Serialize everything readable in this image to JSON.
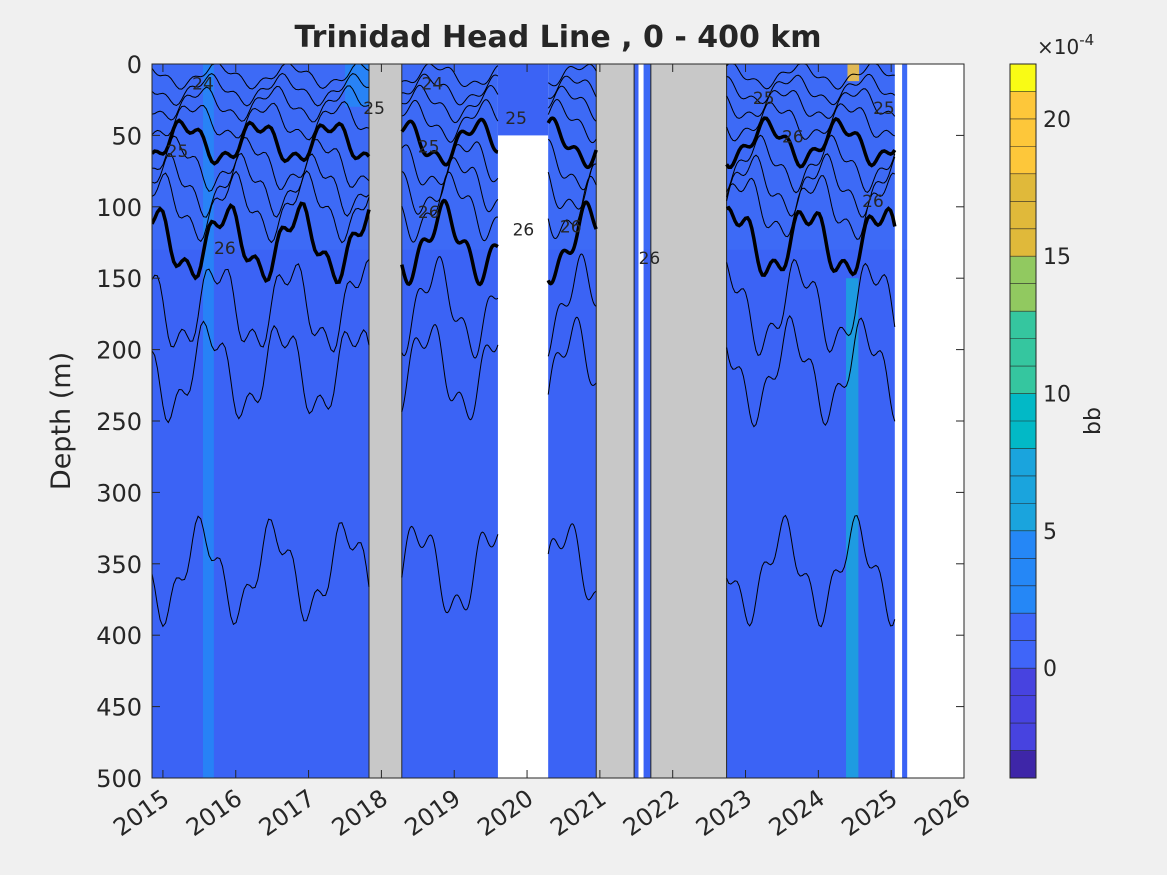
{
  "chart_data": {
    "type": "heatmap",
    "title": "Trinidad Head Line , 0 - 400 km",
    "xlabel": "",
    "ylabel": "Depth (m)",
    "xlim": [
      2014.85,
      2026
    ],
    "ylim": [
      0,
      500
    ],
    "y_reversed": true,
    "xticks": [
      2015,
      2016,
      2017,
      2018,
      2019,
      2020,
      2021,
      2022,
      2023,
      2024,
      2025,
      2026
    ],
    "yticks": [
      0,
      50,
      100,
      150,
      200,
      250,
      300,
      350,
      400,
      450,
      500
    ],
    "grid": false,
    "colorbar": {
      "label": "bb",
      "exponent_label": "×10",
      "exponent_power": "-4",
      "range": [
        -4,
        22
      ],
      "ticks": [
        0,
        5,
        10,
        15,
        20
      ],
      "levels": 26,
      "colormap": [
        "#3e26a8",
        "#4743e0",
        "#3f65f9",
        "#2587f6",
        "#1aa4dd",
        "#02b9c6",
        "#35c69f",
        "#91c960",
        "#e0b93a",
        "#fdc73a",
        "#f9fb15"
      ]
    },
    "background_field_color": "#3b63f5",
    "gaps_nodata": [
      [
        2017.83,
        2018.28
      ],
      [
        2020.95,
        2021.47
      ],
      [
        2021.7,
        2022.74
      ]
    ],
    "gaps_missing": [
      [
        2019.6,
        2020.29
      ],
      [
        2021.53,
        2021.6
      ],
      [
        2025.05,
        2025.15
      ],
      [
        2025.22,
        2026
      ]
    ],
    "white_blocks": [
      {
        "x0": 2019.6,
        "x1": 2020.29,
        "y0": 50,
        "y1": 500
      }
    ],
    "feature_streaks": [
      {
        "x0": 2024.38,
        "x1": 2024.55,
        "y0": 150,
        "y1": 500,
        "value": 6
      },
      {
        "x0": 2015.55,
        "x1": 2015.7,
        "y0": 0,
        "y1": 500,
        "value": 3
      },
      {
        "x0": 2024.4,
        "x1": 2024.56,
        "y0": 0,
        "y1": 12,
        "value": 20
      },
      {
        "x0": 2017.5,
        "x1": 2017.9,
        "y0": 0,
        "y1": 30,
        "value": 5
      }
    ],
    "contour_labels": [
      {
        "text": "24",
        "x": 2015.55,
        "y": 18
      },
      {
        "text": "25",
        "x": 2015.2,
        "y": 65
      },
      {
        "text": "26",
        "x": 2015.85,
        "y": 133
      },
      {
        "text": "25",
        "x": 2017.9,
        "y": 35
      },
      {
        "text": "24",
        "x": 2018.7,
        "y": 18
      },
      {
        "text": "25",
        "x": 2018.65,
        "y": 62
      },
      {
        "text": "26",
        "x": 2018.65,
        "y": 108
      },
      {
        "text": "25",
        "x": 2019.85,
        "y": 42
      },
      {
        "text": "26",
        "x": 2019.95,
        "y": 120
      },
      {
        "text": "26",
        "x": 2020.6,
        "y": 118
      },
      {
        "text": "26",
        "x": 2021.68,
        "y": 140
      },
      {
        "text": "25",
        "x": 2023.25,
        "y": 28
      },
      {
        "text": "26",
        "x": 2023.65,
        "y": 55
      },
      {
        "text": "26",
        "x": 2024.75,
        "y": 100
      },
      {
        "text": "25",
        "x": 2024.9,
        "y": 35
      }
    ]
  }
}
